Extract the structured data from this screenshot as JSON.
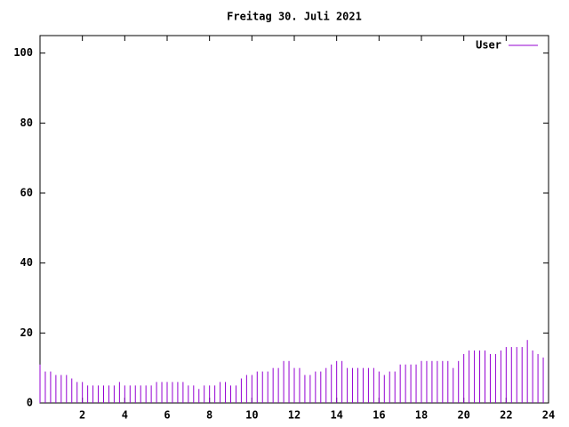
{
  "chart_data": {
    "type": "impulse",
    "title": "Freitag 30. Juli 2021",
    "series": [
      {
        "name": "User",
        "color": "#9400d3",
        "x": [
          0,
          0.25,
          0.5,
          0.75,
          1,
          1.25,
          1.5,
          1.75,
          2,
          2.25,
          2.5,
          2.75,
          3,
          3.25,
          3.5,
          3.75,
          4,
          4.25,
          4.5,
          4.75,
          5,
          5.25,
          5.5,
          5.75,
          6,
          6.25,
          6.5,
          6.75,
          7,
          7.25,
          7.5,
          7.75,
          8,
          8.25,
          8.5,
          8.75,
          9,
          9.25,
          9.5,
          9.75,
          10,
          10.25,
          10.5,
          10.75,
          11,
          11.25,
          11.5,
          11.75,
          12,
          12.25,
          12.5,
          12.75,
          13,
          13.25,
          13.5,
          13.75,
          14,
          14.25,
          14.5,
          14.75,
          15,
          15.25,
          15.5,
          15.75,
          16,
          16.25,
          16.5,
          16.75,
          17,
          17.25,
          17.5,
          17.75,
          18,
          18.25,
          18.5,
          18.75,
          19,
          19.25,
          19.5,
          19.75,
          20,
          20.25,
          20.5,
          20.75,
          21,
          21.25,
          21.5,
          21.75,
          22,
          22.25,
          22.5,
          22.75,
          23,
          23.25,
          23.5,
          23.75
        ],
        "values": [
          11,
          9,
          9,
          8,
          8,
          8,
          7,
          6,
          6,
          5,
          5,
          5,
          5,
          5,
          5,
          6,
          5,
          5,
          5,
          5,
          5,
          5,
          6,
          6,
          6,
          6,
          6,
          6,
          5,
          5,
          4,
          5,
          5,
          5,
          6,
          6,
          5,
          5,
          7,
          8,
          8,
          9,
          9,
          9,
          10,
          10,
          12,
          12,
          10,
          10,
          8,
          8,
          9,
          9,
          10,
          11,
          12,
          12,
          10,
          10,
          10,
          10,
          10,
          10,
          9,
          8,
          9,
          9,
          11,
          11,
          11,
          11,
          12,
          12,
          12,
          12,
          12,
          12,
          10,
          12,
          14,
          15,
          15,
          15,
          15,
          14,
          14,
          15,
          16,
          16,
          16,
          16,
          18,
          15,
          14,
          13
        ]
      }
    ],
    "xlim": [
      0,
      24
    ],
    "xticks": [
      2,
      4,
      6,
      8,
      10,
      12,
      14,
      16,
      18,
      20,
      22,
      24
    ],
    "ylim": [
      0,
      105
    ],
    "yticks": [
      0,
      20,
      40,
      60,
      80,
      100
    ],
    "legend": "top-right"
  }
}
